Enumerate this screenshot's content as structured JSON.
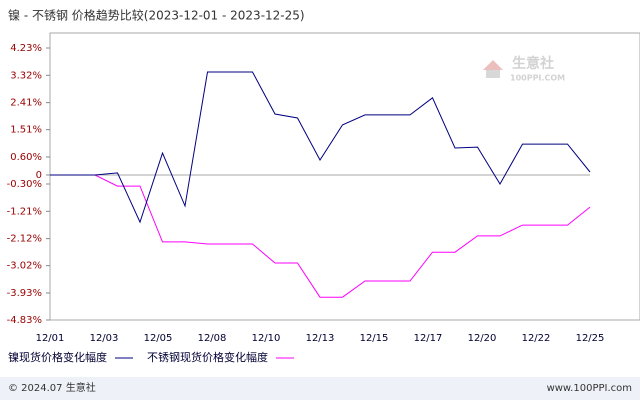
{
  "chart_data": {
    "type": "line",
    "title": "镍 - 不锈钢 价格趋势比较(2023-12-01 - 2023-12-25)",
    "xticks": [
      "12/01",
      "12/03",
      "12/05",
      "12/08",
      "12/10",
      "12/13",
      "12/15",
      "12/17",
      "12/20",
      "12/22",
      "12/25"
    ],
    "series": [
      {
        "name": "镍现货价格变化幅度",
        "color": "#000080",
        "values": [
          0,
          0,
          0,
          0.07,
          -1.57,
          0.73,
          -1.03,
          3.43,
          3.43,
          3.43,
          2.03,
          1.9,
          0.5,
          1.67,
          2.0,
          2.0,
          2.0,
          2.57,
          0.9,
          0.93,
          -0.3,
          1.03,
          1.03,
          1.03,
          0.1
        ]
      },
      {
        "name": "不锈钢现货价格变化幅度",
        "color": "#ff00ff",
        "values": [
          0,
          0,
          0,
          -0.37,
          -0.37,
          -2.23,
          -2.23,
          -2.3,
          -2.3,
          -2.3,
          -2.93,
          -2.93,
          -4.07,
          -4.07,
          -3.53,
          -3.53,
          -3.53,
          -2.57,
          -2.57,
          -2.03,
          -2.03,
          -1.67,
          -1.67,
          -1.67,
          -1.07
        ]
      }
    ],
    "ylim": [
      -4.83,
      4.23
    ],
    "yticks": [
      {
        "value": 4.23,
        "label": "4.23%"
      },
      {
        "value": 3.32,
        "label": "3.32%"
      },
      {
        "value": 2.41,
        "label": "2.41%"
      },
      {
        "value": 1.51,
        "label": "1.51%"
      },
      {
        "value": 0.6,
        "label": "0.60%"
      },
      0,
      {
        "value": -0.3,
        "label": "-0.30%"
      },
      {
        "value": -1.21,
        "label": "-1.21%"
      },
      {
        "value": -2.12,
        "label": "-2.12%"
      },
      {
        "value": -3.02,
        "label": "-3.02%"
      },
      {
        "value": -3.93,
        "label": "-3.93%"
      },
      {
        "value": -4.83,
        "label": "-4.83%"
      }
    ],
    "zero_line": true,
    "watermark": {
      "name": "生意社",
      "site": "100PPI.COM"
    },
    "footer": {
      "copyright": "© 2024.07 生意社",
      "site": "www.100PPI.com"
    }
  }
}
